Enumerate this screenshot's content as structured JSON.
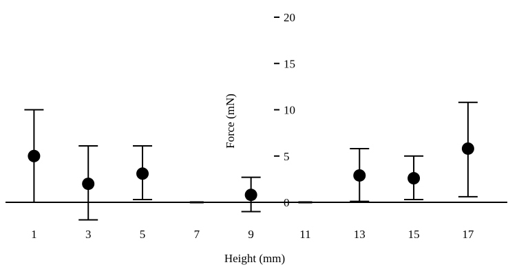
{
  "chart_data": {
    "type": "scatter",
    "title": "",
    "xlabel": "Height (mm)",
    "ylabel": "Force (mN)",
    "x_ticks": [
      "1",
      "3",
      "5",
      "7",
      "9",
      "11",
      "13",
      "15",
      "17"
    ],
    "y_ticks": [
      "0",
      "5",
      "10",
      "15",
      "20"
    ],
    "xlim": [
      0,
      18.5
    ],
    "ylim": [
      -2.5,
      21
    ],
    "y_axis_at_x": 10,
    "grid": false,
    "legend": "none",
    "series": [
      {
        "points": [
          {
            "x": 1,
            "y": 5.0,
            "err_low": 0.0,
            "err_high": 10.0
          },
          {
            "x": 3,
            "y": 2.0,
            "err_low": -1.9,
            "err_high": 6.1
          },
          {
            "x": 5,
            "y": 3.1,
            "err_low": 0.3,
            "err_high": 6.1
          },
          {
            "x": 7,
            "y": 0.0,
            "err_low": 0.0,
            "err_high": 0.0
          },
          {
            "x": 9,
            "y": 0.8,
            "err_low": -1.0,
            "err_high": 2.7
          },
          {
            "x": 11,
            "y": 0.0,
            "err_low": 0.0,
            "err_high": 0.0
          },
          {
            "x": 13,
            "y": 2.9,
            "err_low": 0.1,
            "err_high": 5.8
          },
          {
            "x": 15,
            "y": 2.6,
            "err_low": 0.3,
            "err_high": 5.0
          },
          {
            "x": 17,
            "y": 5.8,
            "err_low": 0.6,
            "err_high": 10.8
          }
        ]
      }
    ]
  }
}
